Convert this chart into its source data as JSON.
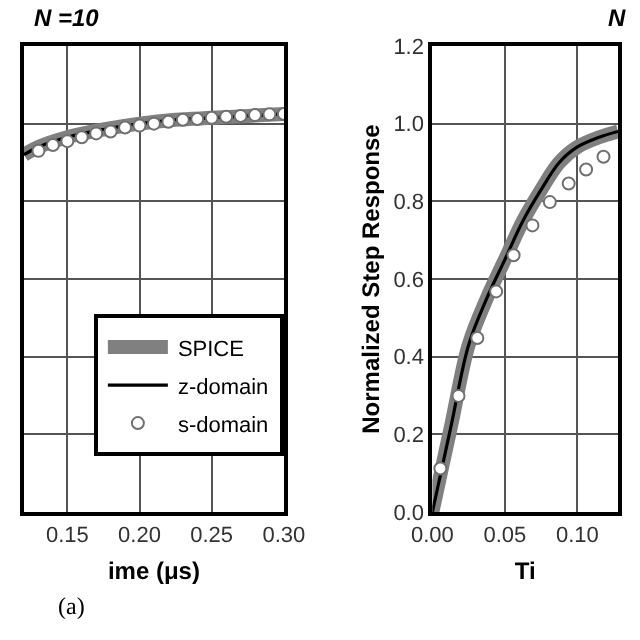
{
  "chart_data": [
    {
      "type": "line",
      "title": "N =10",
      "xlabel": "ime (μs)",
      "annotations": [
        "(a)"
      ],
      "xlim": [
        0.12,
        0.3
      ],
      "xticks": [
        0.15,
        {
          "value": 0.2,
          "label": "0.20"
        },
        0.25,
        {
          "value": 0.3,
          "label": "0.30"
        }
      ],
      "ylim": [
        0,
        1.2
      ],
      "yticks": [
        0,
        0.2,
        0.4,
        0.6,
        0.8,
        1.0,
        1.2
      ],
      "tick_labels": "x",
      "grid": true,
      "legend": "bottom right",
      "series": [
        {
          "name": "SPICE",
          "color": "#808080",
          "x": [
            0.12,
            0.13,
            0.15,
            0.175,
            0.2,
            0.225,
            0.25,
            0.275,
            0.3
          ],
          "values": [
            0.92,
            0.94,
            0.965,
            0.985,
            1.0,
            1.01,
            1.015,
            1.02,
            1.025
          ]
        },
        {
          "name": "z-domain",
          "color": "#000000",
          "x": [
            0.12,
            0.13,
            0.15,
            0.175,
            0.2,
            0.225,
            0.25,
            0.275,
            0.3
          ],
          "values": [
            0.92,
            0.94,
            0.965,
            0.985,
            1.0,
            1.01,
            1.015,
            1.02,
            1.025
          ]
        },
        {
          "name": "s-domain",
          "type": "scatter",
          "marker": "circle",
          "color": "#ffffff",
          "x": [
            0.13,
            0.14,
            0.15,
            0.16,
            0.17,
            0.18,
            0.19,
            0.2,
            0.21,
            0.22,
            0.23,
            0.24,
            0.25,
            0.26,
            0.27,
            0.28,
            0.29,
            0.3
          ],
          "values": [
            0.93,
            0.945,
            0.955,
            0.965,
            0.975,
            0.98,
            0.99,
            0.995,
            1.0,
            1.005,
            1.01,
            1.012,
            1.015,
            1.018,
            1.02,
            1.022,
            1.024,
            1.025
          ]
        }
      ]
    },
    {
      "type": "line",
      "title": "N",
      "xlabel": "Ti",
      "ylabel": "Normalized Step Response",
      "xlim": [
        0,
        0.128
      ],
      "xticks": [
        {
          "value": 0,
          "label": "0.00"
        },
        0.05,
        {
          "value": 0.1,
          "label": "0.10"
        }
      ],
      "ylim": [
        0,
        1.2
      ],
      "yticks": [
        {
          "value": 0,
          "label": "0.0"
        },
        0.2,
        0.4,
        0.6,
        0.8,
        {
          "value": 1,
          "label": "1.0"
        },
        1.2
      ],
      "grid": true,
      "series": [
        {
          "color": "#808080",
          "x": [
            0,
            0.0128,
            0.025,
            0.0375,
            0.05,
            0.0625,
            0.075,
            0.0875,
            0.1,
            0.115,
            0.128
          ],
          "values": [
            0,
            0.22,
            0.43,
            0.55,
            0.65,
            0.75,
            0.83,
            0.9,
            0.94,
            0.965,
            0.98
          ]
        },
        {
          "color": "#000000",
          "x": [
            0,
            0.0128,
            0.025,
            0.0375,
            0.05,
            0.0625,
            0.075,
            0.0875,
            0.1,
            0.115,
            0.128
          ],
          "values": [
            0,
            0.22,
            0.43,
            0.55,
            0.65,
            0.75,
            0.83,
            0.9,
            0.94,
            0.965,
            0.98
          ]
        },
        {
          "type": "scatter",
          "marker": "circle",
          "color": "#ffffff",
          "x": [
            0.0055,
            0.018,
            0.031,
            0.044,
            0.056,
            0.069,
            0.081,
            0.094,
            0.106,
            0.118
          ],
          "values": [
            0.112,
            0.299,
            0.448,
            0.568,
            0.661,
            0.738,
            0.798,
            0.846,
            0.882,
            0.915
          ]
        }
      ]
    }
  ]
}
